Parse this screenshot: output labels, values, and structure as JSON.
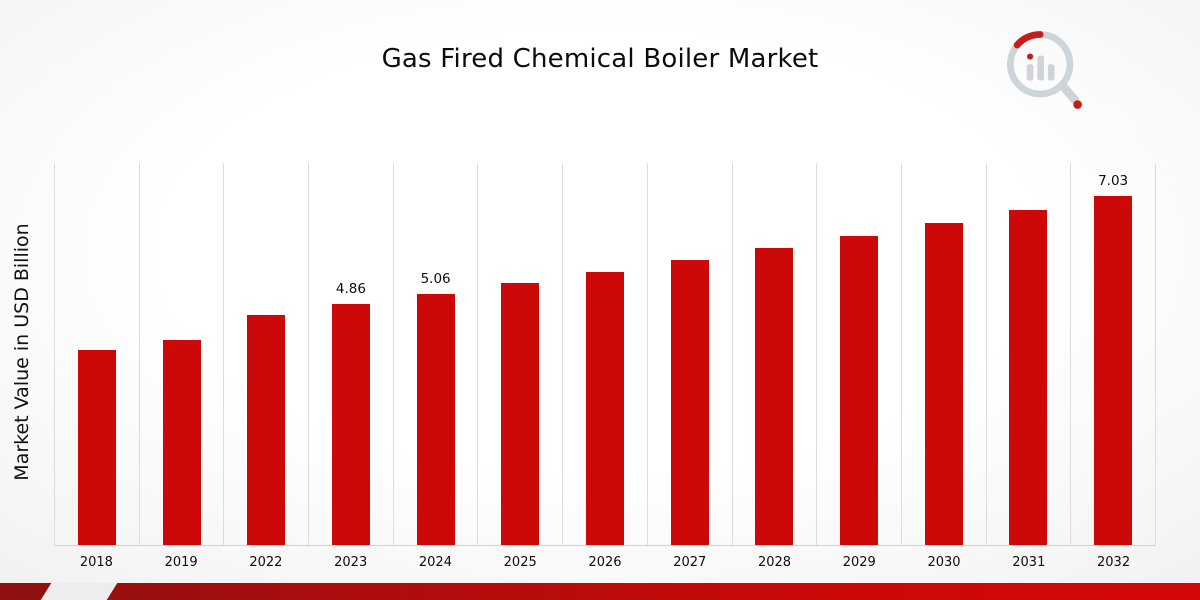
{
  "page": {
    "title": "Gas Fired Chemical Boiler Market"
  },
  "icons": {
    "brand_logo": "bar-chart-magnifier-logo"
  },
  "colors": {
    "bar_red": "#cc0808",
    "ribbon_dark_red": "#8e1010",
    "ribbon_bright_red": "#d40808",
    "logo_gray": "#ccd1d6"
  },
  "chart_data": {
    "type": "bar",
    "title": "Gas Fired Chemical Boiler Market",
    "xlabel": "",
    "ylabel": "Market Value in USD Billion",
    "categories": [
      "2018",
      "2019",
      "2022",
      "2023",
      "2024",
      "2025",
      "2026",
      "2027",
      "2028",
      "2029",
      "2030",
      "2031",
      "2032"
    ],
    "values": [
      3.93,
      4.13,
      4.63,
      4.86,
      5.06,
      5.28,
      5.51,
      5.74,
      5.98,
      6.23,
      6.49,
      6.76,
      7.03
    ],
    "data_labels": {
      "2023": "4.86",
      "2024": "5.06",
      "2032": "7.03"
    },
    "bar_color": "#cc0808",
    "ylim": [
      0,
      7.7
    ],
    "grid": "vertical",
    "legend": "none"
  }
}
